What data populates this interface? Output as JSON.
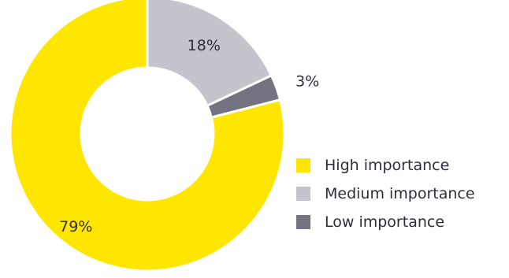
{
  "chart_data": {
    "type": "pie",
    "donut": true,
    "title": "",
    "slices": [
      {
        "label": "High importance",
        "value": 79,
        "value_label": "79%",
        "color": "#ffe600"
      },
      {
        "label": "Medium importance",
        "value": 18,
        "value_label": "18%",
        "color": "#c4c4cd"
      },
      {
        "label": "Low importance",
        "value": 3,
        "value_label": "3%",
        "color": "#747480"
      }
    ],
    "legend_position": "right"
  }
}
